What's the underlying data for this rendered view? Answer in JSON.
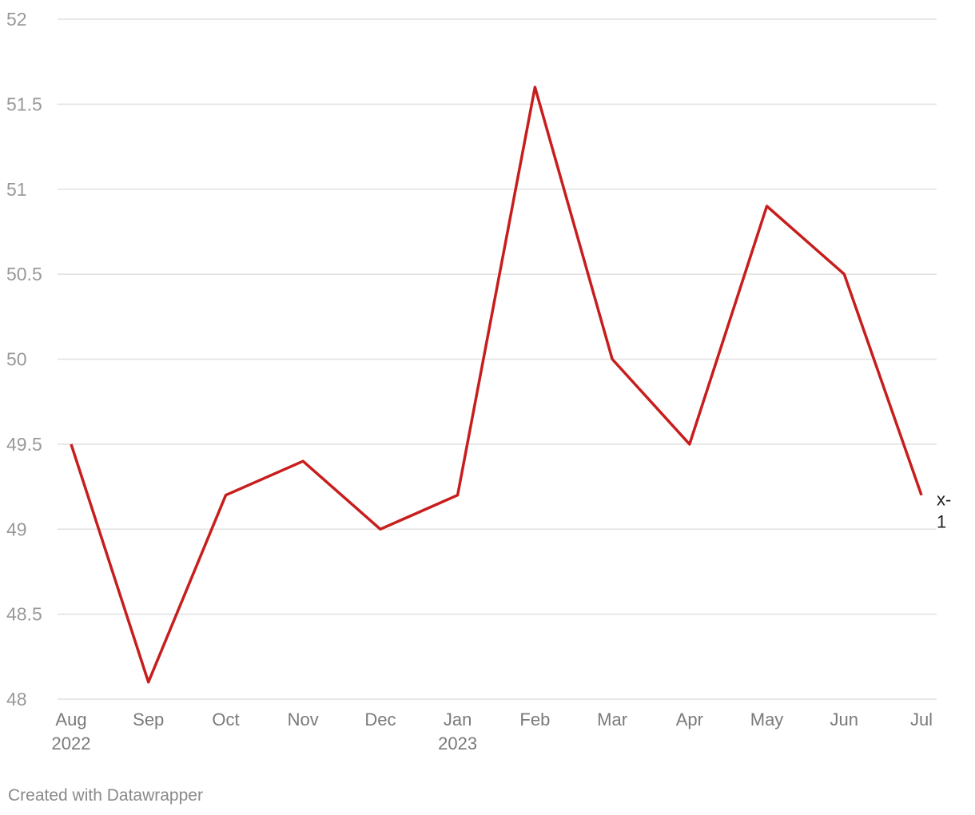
{
  "chart_data": {
    "type": "line",
    "x": [
      "Aug",
      "Sep",
      "Oct",
      "Nov",
      "Dec",
      "Jan",
      "Feb",
      "Mar",
      "Apr",
      "May",
      "Jun",
      "Jul"
    ],
    "x_year_labels": [
      "2022",
      "",
      "",
      "",
      "",
      "2023",
      "",
      "",
      "",
      "",
      "",
      ""
    ],
    "series": [
      {
        "name": "x-1",
        "values": [
          49.5,
          48.1,
          49.2,
          49.4,
          49.0,
          49.2,
          51.6,
          50.0,
          49.5,
          50.9,
          50.5,
          49.2
        ],
        "color": "#c71e1d"
      }
    ],
    "series_end_label": [
      "x-",
      "1"
    ],
    "ylim": [
      48,
      52
    ],
    "yticks": [
      "48",
      "48.5",
      "49",
      "49.5",
      "50",
      "50.5",
      "51",
      "51.5",
      "52"
    ],
    "grid": true,
    "legend": "none",
    "colors": {
      "line": "#c71e1d",
      "grid": "#e0e0e0",
      "tick_text": "#999999",
      "axis_text": "#7a7a7a",
      "end_label": "#222222"
    }
  },
  "footer": {
    "credit": "Created with Datawrapper"
  }
}
